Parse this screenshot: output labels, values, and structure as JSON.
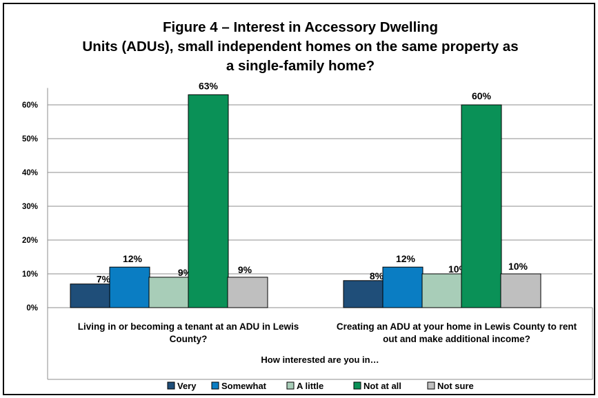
{
  "chart_data": {
    "type": "bar",
    "title_lines": [
      "Figure 4 – Interest in Accessory Dwelling",
      "Units (ADUs), small independent homes on the same property as",
      "a single-family home?"
    ],
    "xlabel": "How interested are you in…",
    "ylabel": "",
    "ylim": [
      0,
      0.65
    ],
    "yticks": [
      0,
      0.1,
      0.2,
      0.3,
      0.4,
      0.5,
      0.6
    ],
    "ytick_labels": [
      "0%",
      "10%",
      "20%",
      "30%",
      "40%",
      "50%",
      "60%"
    ],
    "categories": [
      [
        "Living in or becoming a tenant at an ADU in Lewis",
        "County?"
      ],
      [
        "Creating an ADU at your home in Lewis County to rent",
        "out and make additional income?"
      ]
    ],
    "series": [
      {
        "name": "Very",
        "color": "#1f4e79",
        "values": [
          0.07,
          0.08
        ],
        "labels": [
          "7%",
          "8%"
        ]
      },
      {
        "name": "Somewhat",
        "color": "#0a7dc3",
        "values": [
          0.12,
          0.12
        ],
        "labels": [
          "12%",
          "12%"
        ]
      },
      {
        "name": "A little",
        "color": "#a8cdb8",
        "values": [
          0.09,
          0.1
        ],
        "labels": [
          "9%",
          "10%"
        ]
      },
      {
        "name": "Not at all",
        "color": "#0a9157",
        "values": [
          0.63,
          0.6
        ],
        "labels": [
          "63%",
          "60%"
        ]
      },
      {
        "name": "Not sure",
        "color": "#bfbfbf",
        "values": [
          0.09,
          0.1
        ],
        "labels": [
          "9%",
          "10%"
        ]
      }
    ],
    "grid": true,
    "legend_position": "bottom"
  }
}
